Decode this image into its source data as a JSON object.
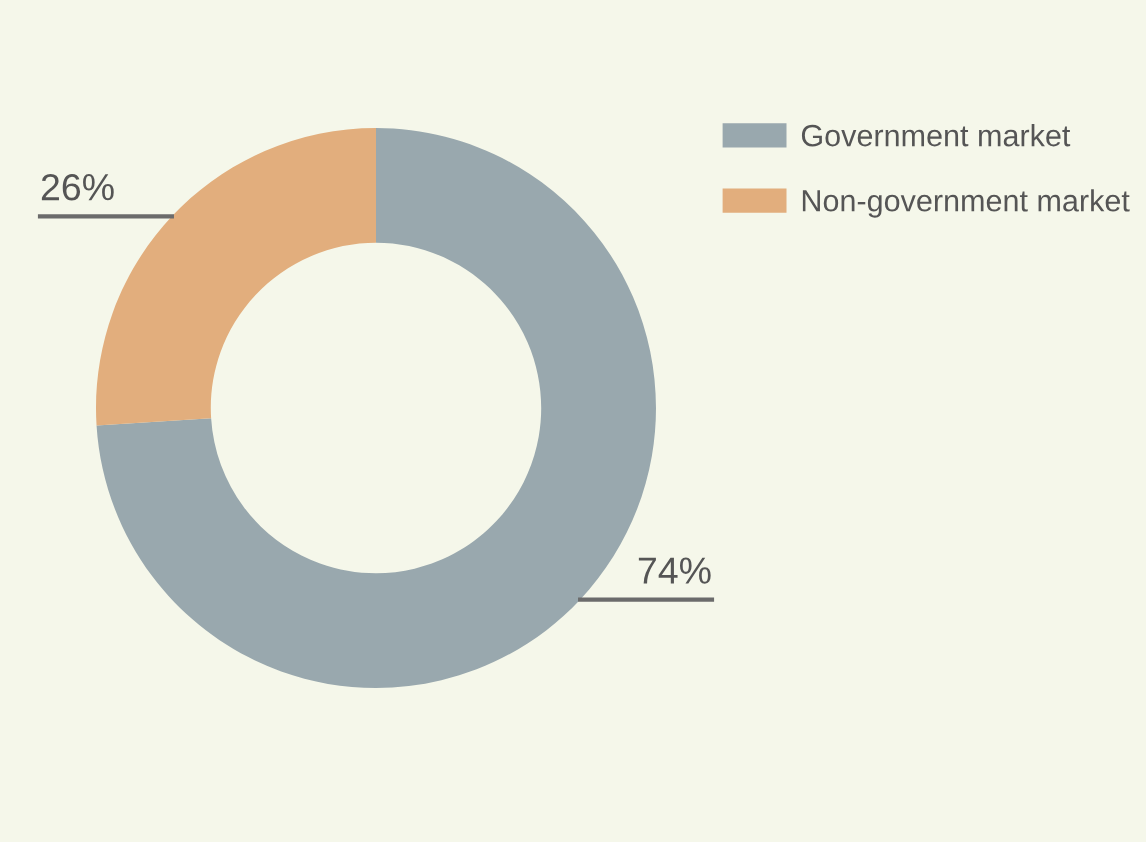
{
  "chart_data": {
    "type": "donut",
    "categories": [
      "Government market",
      "Non-government market"
    ],
    "values": [
      74,
      26
    ],
    "colors": [
      "#99a8ae",
      "#e2ae7d"
    ],
    "value_labels": [
      "74%",
      "26%"
    ],
    "legend": "top right"
  }
}
